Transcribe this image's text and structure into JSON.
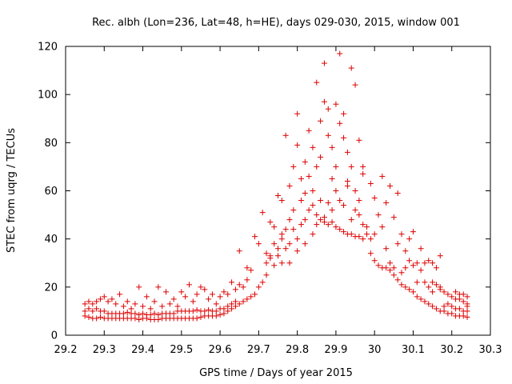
{
  "chart_data": {
    "type": "scatter",
    "title": "Rec. albh (Lon=236, Lat=48, h=HE), days 029-030, 2015, window 001",
    "xlabel": "GPS time / Days of year 2015",
    "ylabel": "STEC from uqrg / TECUs",
    "xlim": [
      29.2,
      30.3
    ],
    "ylim": [
      0,
      120
    ],
    "xticks": [
      "29.2",
      "29.3",
      "29.4",
      "29.5",
      "29.6",
      "29.7",
      "29.8",
      "29.9",
      "30",
      "30.1",
      "30.2",
      "30.3"
    ],
    "yticks": [
      "0",
      "20",
      "40",
      "60",
      "80",
      "100",
      "120"
    ],
    "grid": false,
    "legend": "none",
    "marker": "plus",
    "color": "#dd0000",
    "points": [
      [
        29.25,
        8
      ],
      [
        29.26,
        7.5
      ],
      [
        29.27,
        7
      ],
      [
        29.28,
        7
      ],
      [
        29.29,
        7.5
      ],
      [
        29.3,
        7
      ],
      [
        29.31,
        7
      ],
      [
        29.32,
        7
      ],
      [
        29.33,
        7
      ],
      [
        29.34,
        7
      ],
      [
        29.35,
        7
      ],
      [
        29.36,
        7
      ],
      [
        29.37,
        7
      ],
      [
        29.38,
        7
      ],
      [
        29.39,
        6.5
      ],
      [
        29.4,
        7
      ],
      [
        29.41,
        7
      ],
      [
        29.42,
        6.5
      ],
      [
        29.43,
        6.5
      ],
      [
        29.44,
        6.5
      ],
      [
        29.45,
        7
      ],
      [
        29.46,
        7
      ],
      [
        29.47,
        7
      ],
      [
        29.48,
        7
      ],
      [
        29.49,
        7
      ],
      [
        29.5,
        7
      ],
      [
        29.51,
        7
      ],
      [
        29.52,
        7
      ],
      [
        29.53,
        7
      ],
      [
        29.54,
        7
      ],
      [
        29.55,
        7.5
      ],
      [
        29.56,
        8
      ],
      [
        29.57,
        8
      ],
      [
        29.58,
        8
      ],
      [
        29.59,
        8
      ],
      [
        29.6,
        8.5
      ],
      [
        29.61,
        9
      ],
      [
        29.62,
        10
      ],
      [
        29.63,
        11
      ],
      [
        29.64,
        12
      ],
      [
        29.65,
        13
      ],
      [
        29.66,
        14
      ],
      [
        29.67,
        15
      ],
      [
        29.68,
        16
      ],
      [
        29.69,
        17
      ],
      [
        29.25,
        10
      ],
      [
        29.26,
        11
      ],
      [
        29.27,
        10
      ],
      [
        29.28,
        11
      ],
      [
        29.29,
        10
      ],
      [
        29.3,
        10
      ],
      [
        29.31,
        9
      ],
      [
        29.32,
        9
      ],
      [
        29.33,
        9
      ],
      [
        29.34,
        9
      ],
      [
        29.35,
        9
      ],
      [
        29.36,
        9.5
      ],
      [
        29.37,
        9
      ],
      [
        29.38,
        9
      ],
      [
        29.39,
        8.5
      ],
      [
        29.4,
        9
      ],
      [
        29.41,
        8.5
      ],
      [
        29.42,
        8.5
      ],
      [
        29.43,
        9
      ],
      [
        29.44,
        8.5
      ],
      [
        29.45,
        9
      ],
      [
        29.46,
        9
      ],
      [
        29.47,
        9
      ],
      [
        29.48,
        9
      ],
      [
        29.49,
        10
      ],
      [
        29.5,
        10
      ],
      [
        29.51,
        10
      ],
      [
        29.52,
        10
      ],
      [
        29.53,
        10
      ],
      [
        29.54,
        10.5
      ],
      [
        29.55,
        10
      ],
      [
        29.56,
        10
      ],
      [
        29.57,
        10.5
      ],
      [
        29.58,
        10
      ],
      [
        29.59,
        10
      ],
      [
        29.6,
        11
      ],
      [
        29.61,
        11
      ],
      [
        29.62,
        12
      ],
      [
        29.63,
        13
      ],
      [
        29.64,
        14
      ],
      [
        29.25,
        13
      ],
      [
        29.26,
        14
      ],
      [
        29.27,
        13
      ],
      [
        29.28,
        14
      ],
      [
        29.29,
        15
      ],
      [
        29.3,
        16
      ],
      [
        29.31,
        14
      ],
      [
        29.32,
        15
      ],
      [
        29.33,
        13
      ],
      [
        29.34,
        17
      ],
      [
        29.35,
        12
      ],
      [
        29.36,
        14
      ],
      [
        29.37,
        11
      ],
      [
        29.38,
        13
      ],
      [
        29.39,
        20
      ],
      [
        29.4,
        12
      ],
      [
        29.41,
        16
      ],
      [
        29.42,
        11
      ],
      [
        29.43,
        14
      ],
      [
        29.44,
        20
      ],
      [
        29.45,
        12
      ],
      [
        29.46,
        18
      ],
      [
        29.47,
        13
      ],
      [
        29.48,
        15
      ],
      [
        29.49,
        12
      ],
      [
        29.5,
        18
      ],
      [
        29.51,
        16
      ],
      [
        29.52,
        21
      ],
      [
        29.53,
        14
      ],
      [
        29.54,
        17
      ],
      [
        29.55,
        20
      ],
      [
        29.56,
        19
      ],
      [
        29.57,
        15
      ],
      [
        29.58,
        17
      ],
      [
        29.59,
        13
      ],
      [
        29.6,
        16
      ],
      [
        29.61,
        18
      ],
      [
        29.62,
        17
      ],
      [
        29.63,
        22
      ],
      [
        29.64,
        19
      ],
      [
        29.65,
        21
      ],
      [
        29.66,
        20
      ],
      [
        29.67,
        23
      ],
      [
        29.65,
        35
      ],
      [
        29.67,
        28
      ],
      [
        29.68,
        27
      ],
      [
        29.69,
        41
      ],
      [
        29.7,
        38
      ],
      [
        29.7,
        20
      ],
      [
        29.71,
        22
      ],
      [
        29.72,
        25
      ],
      [
        29.71,
        51
      ],
      [
        29.72,
        30
      ],
      [
        29.73,
        47
      ],
      [
        29.73,
        33
      ],
      [
        29.74,
        45
      ],
      [
        29.74,
        29
      ],
      [
        29.75,
        58
      ],
      [
        29.75,
        36
      ],
      [
        29.76,
        40
      ],
      [
        29.76,
        56
      ],
      [
        29.77,
        83
      ],
      [
        29.77,
        44
      ],
      [
        29.78,
        48
      ],
      [
        29.78,
        62
      ],
      [
        29.79,
        70
      ],
      [
        29.79,
        52
      ],
      [
        29.8,
        92
      ],
      [
        29.8,
        79
      ],
      [
        29.81,
        65
      ],
      [
        29.81,
        56
      ],
      [
        29.82,
        59
      ],
      [
        29.82,
        72
      ],
      [
        29.83,
        85
      ],
      [
        29.83,
        66
      ],
      [
        29.84,
        78
      ],
      [
        29.84,
        60
      ],
      [
        29.85,
        70
      ],
      [
        29.85,
        105
      ],
      [
        29.86,
        89
      ],
      [
        29.86,
        74
      ],
      [
        29.87,
        113
      ],
      [
        29.87,
        97
      ],
      [
        29.88,
        83
      ],
      [
        29.88,
        94
      ],
      [
        29.89,
        65
      ],
      [
        29.89,
        78
      ],
      [
        29.9,
        96
      ],
      [
        29.9,
        70
      ],
      [
        29.91,
        88
      ],
      [
        29.91,
        117
      ],
      [
        29.92,
        92
      ],
      [
        29.92,
        82
      ],
      [
        29.93,
        76
      ],
      [
        29.93,
        64
      ],
      [
        29.94,
        111
      ],
      [
        29.94,
        70
      ],
      [
        29.95,
        104
      ],
      [
        29.95,
        60
      ],
      [
        29.96,
        81
      ],
      [
        29.96,
        56
      ],
      [
        29.97,
        70
      ],
      [
        29.97,
        67
      ],
      [
        29.72,
        34
      ],
      [
        29.73,
        32
      ],
      [
        29.74,
        38
      ],
      [
        29.75,
        33
      ],
      [
        29.76,
        42
      ],
      [
        29.77,
        36
      ],
      [
        29.78,
        38
      ],
      [
        29.79,
        44
      ],
      [
        29.8,
        40
      ],
      [
        29.81,
        46
      ],
      [
        29.82,
        48
      ],
      [
        29.83,
        52
      ],
      [
        29.84,
        54
      ],
      [
        29.85,
        50
      ],
      [
        29.86,
        56
      ],
      [
        29.87,
        49
      ],
      [
        29.88,
        55
      ],
      [
        29.89,
        52
      ],
      [
        29.9,
        60
      ],
      [
        29.91,
        56
      ],
      [
        29.92,
        54
      ],
      [
        29.93,
        62
      ],
      [
        29.94,
        48
      ],
      [
        29.95,
        52
      ],
      [
        29.96,
        50
      ],
      [
        29.97,
        46
      ],
      [
        29.98,
        45
      ],
      [
        29.76,
        30
      ],
      [
        29.78,
        30
      ],
      [
        29.8,
        35
      ],
      [
        29.82,
        38
      ],
      [
        29.84,
        42
      ],
      [
        29.85,
        46
      ],
      [
        29.86,
        48
      ],
      [
        29.87,
        47
      ],
      [
        29.88,
        46
      ],
      [
        29.89,
        47
      ],
      [
        29.9,
        45
      ],
      [
        29.91,
        44
      ],
      [
        29.92,
        43
      ],
      [
        29.93,
        42
      ],
      [
        29.94,
        42
      ],
      [
        29.95,
        41
      ],
      [
        29.96,
        41
      ],
      [
        29.97,
        40
      ],
      [
        29.98,
        42
      ],
      [
        29.99,
        63
      ],
      [
        29.99,
        40
      ],
      [
        30.0,
        57
      ],
      [
        30.0,
        42
      ],
      [
        30.01,
        50
      ],
      [
        30.02,
        45
      ],
      [
        30.02,
        66
      ],
      [
        30.03,
        55
      ],
      [
        30.03,
        36
      ],
      [
        30.04,
        62
      ],
      [
        30.04,
        30
      ],
      [
        30.05,
        49
      ],
      [
        30.05,
        28
      ],
      [
        30.06,
        59
      ],
      [
        30.06,
        38
      ],
      [
        30.07,
        42
      ],
      [
        30.07,
        26
      ],
      [
        30.08,
        35
      ],
      [
        30.08,
        28
      ],
      [
        30.09,
        40
      ],
      [
        30.09,
        31
      ],
      [
        30.1,
        43
      ],
      [
        30.1,
        29
      ],
      [
        30.11,
        30
      ],
      [
        30.11,
        22
      ],
      [
        30.12,
        36
      ],
      [
        30.12,
        27
      ],
      [
        30.13,
        30
      ],
      [
        30.13,
        22
      ],
      [
        30.14,
        31
      ],
      [
        30.14,
        20
      ],
      [
        30.15,
        30
      ],
      [
        30.15,
        18
      ],
      [
        30.16,
        28
      ],
      [
        30.17,
        33
      ],
      [
        30.17,
        20
      ],
      [
        29.99,
        34
      ],
      [
        30.0,
        31
      ],
      [
        30.01,
        29
      ],
      [
        30.02,
        28
      ],
      [
        30.03,
        28
      ],
      [
        30.04,
        27
      ],
      [
        30.05,
        25
      ],
      [
        30.06,
        23
      ],
      [
        30.07,
        21
      ],
      [
        30.08,
        20
      ],
      [
        30.09,
        19
      ],
      [
        30.1,
        18
      ],
      [
        30.11,
        16
      ],
      [
        30.12,
        15
      ],
      [
        30.13,
        14
      ],
      [
        30.14,
        13
      ],
      [
        30.15,
        12
      ],
      [
        30.16,
        11
      ],
      [
        30.17,
        10
      ],
      [
        30.18,
        10
      ],
      [
        30.19,
        9
      ],
      [
        30.2,
        9
      ],
      [
        30.21,
        8
      ],
      [
        30.22,
        8
      ],
      [
        30.23,
        8
      ],
      [
        30.24,
        7.5
      ],
      [
        30.15,
        22
      ],
      [
        30.16,
        21
      ],
      [
        30.17,
        19
      ],
      [
        30.18,
        18
      ],
      [
        30.19,
        17
      ],
      [
        30.2,
        16
      ],
      [
        30.21,
        15
      ],
      [
        30.22,
        15
      ],
      [
        30.23,
        14
      ],
      [
        30.24,
        13
      ],
      [
        30.18,
        12
      ],
      [
        30.19,
        13
      ],
      [
        30.2,
        12
      ],
      [
        30.21,
        11
      ],
      [
        30.22,
        11
      ],
      [
        30.23,
        10
      ],
      [
        30.24,
        10
      ],
      [
        30.21,
        18
      ],
      [
        30.22,
        17
      ],
      [
        30.23,
        17
      ],
      [
        30.24,
        16
      ],
      [
        30.24,
        12
      ]
    ]
  }
}
